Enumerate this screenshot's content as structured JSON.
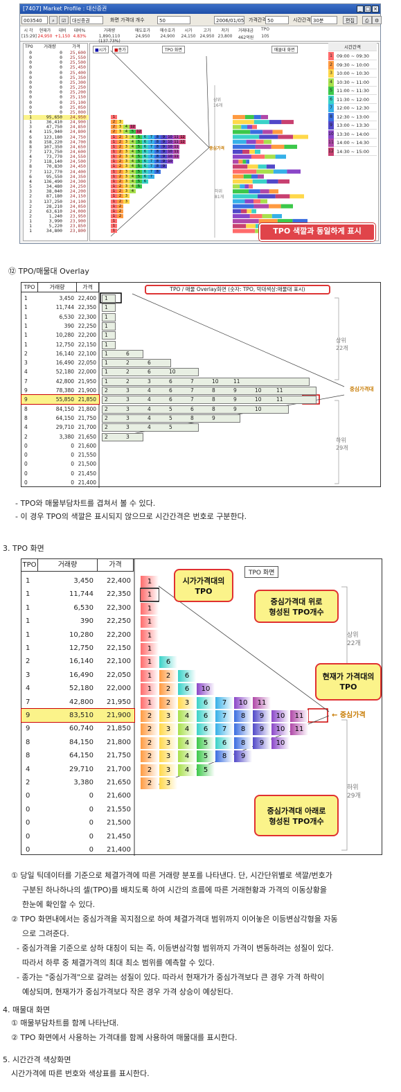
{
  "window": {
    "title": "[7407] Market Profile : 대신증권",
    "code": "003540",
    "name": "대신증권",
    "screen_count_label": "화면 가격대 개수",
    "screen_count_value": "50",
    "date": "2006/01/05",
    "price_interval_label": "가격간격",
    "price_interval_value": "50",
    "time_interval_label": "시간간격",
    "time_interval_value": "30분",
    "edit_button": "편집"
  },
  "quote": {
    "headers": [
      "시 각",
      "현재가",
      "대비",
      "대비%",
      "거래량",
      "매도호가",
      "매수호가",
      "시가",
      "고가",
      "저가",
      "거래대금",
      "TPO"
    ],
    "values": [
      "[15:29]",
      "24,950",
      "+1,150",
      "4.83%",
      "1,890,110 (137.73%)",
      "24,950",
      "24,900",
      "24,150",
      "24,950",
      "23,800",
      "462억원",
      "105"
    ]
  },
  "panel1": {
    "headers": [
      "TPO",
      "거래량",
      "가격"
    ],
    "rows": [
      [
        "0",
        "0",
        "25,600"
      ],
      [
        "0",
        "0",
        "25,550"
      ],
      [
        "0",
        "0",
        "25,500"
      ],
      [
        "0",
        "0",
        "25,450"
      ],
      [
        "0",
        "0",
        "25,400"
      ],
      [
        "0",
        "0",
        "25,350"
      ],
      [
        "0",
        "0",
        "25,300"
      ],
      [
        "0",
        "0",
        "25,250"
      ],
      [
        "0",
        "0",
        "25,200"
      ],
      [
        "0",
        "0",
        "25,150"
      ],
      [
        "0",
        "0",
        "25,100"
      ],
      [
        "0",
        "0",
        "25,050"
      ],
      [
        "0",
        "0",
        "25,000"
      ],
      [
        "1",
        "95,650",
        "24,950"
      ],
      [
        "1",
        "36,410",
        "24,900"
      ],
      [
        "3",
        "47,750",
        "24,850"
      ],
      [
        "4",
        "115,940",
        "24,800"
      ],
      [
        "6",
        "123,180",
        "24,750"
      ],
      [
        "8",
        "158,220",
        "24,700"
      ],
      [
        "8",
        "107,350",
        "24,650"
      ],
      [
        "7",
        "173,750",
        "24,600"
      ],
      [
        "4",
        "73,770",
        "24,550"
      ],
      [
        "7",
        "118,140",
        "24,500"
      ],
      [
        "8",
        "70,830",
        "24,450"
      ],
      [
        "7",
        "112,770",
        "24,400"
      ],
      [
        "6",
        "95,550",
        "24,350"
      ],
      [
        "4",
        "136,490",
        "24,300"
      ],
      [
        "5",
        "34,480",
        "24,250"
      ],
      [
        "3",
        "38,040",
        "24,200"
      ],
      [
        "2",
        "87,180",
        "24,150"
      ],
      [
        "3",
        "137,250",
        "24,100"
      ],
      [
        "2",
        "28,210",
        "24,050"
      ],
      [
        "2",
        "63,610",
        "24,000"
      ],
      [
        "2",
        "1,240",
        "23,950"
      ],
      [
        "1",
        "3,990",
        "23,900"
      ],
      [
        "1",
        "5,220",
        "23,850"
      ],
      [
        "1",
        "34,800",
        "23,800"
      ]
    ],
    "legend_price": "시가",
    "legend_close": "종가",
    "tpo_screen_button": "TPO 화면",
    "volume_screen_button": "매물대 화면",
    "upper_label": "상위\n16개",
    "lower_label": "하위\n81개",
    "center_label": "중심가격",
    "callout": "TPO 색깔과 동일하게 표시"
  },
  "time_legend": {
    "title": "시간간격",
    "items": [
      {
        "n": "1",
        "label": "09:00 ~ 09:30",
        "color": "#ff6b6b"
      },
      {
        "n": "2",
        "label": "09:30 ~ 10:00",
        "color": "#ff9a40"
      },
      {
        "n": "3",
        "label": "10:00 ~ 10:30",
        "color": "#ffd84a"
      },
      {
        "n": "4",
        "label": "10:30 ~ 11:00",
        "color": "#a8e04c"
      },
      {
        "n": "5",
        "label": "11:00 ~ 11:30",
        "color": "#3cc84a"
      },
      {
        "n": "6",
        "label": "11:30 ~ 12:00",
        "color": "#3ad2c8"
      },
      {
        "n": "7",
        "label": "12:00 ~ 12:30",
        "color": "#36b0e8"
      },
      {
        "n": "8",
        "label": "12:30 ~ 13:00",
        "color": "#3a6ee0"
      },
      {
        "n": "9",
        "label": "13:00 ~ 13:30",
        "color": "#5148c8"
      },
      {
        "n": "10",
        "label": "13:30 ~ 14:00",
        "color": "#8a46c8"
      },
      {
        "n": "11",
        "label": "14:00 ~ 14:30",
        "color": "#b048a8"
      },
      {
        "n": "12",
        "label": "14:30 ~ 15:00",
        "color": "#c84070"
      }
    ]
  },
  "section2": {
    "heading": "⑫ TPO/매물대 Overlay",
    "banner": "TPO / 매물 Overlay화면 (숫자: TPO, 막대색상:매물대 표시)",
    "headers": [
      "TPO",
      "거래량",
      "가격"
    ],
    "rows": [
      [
        "1",
        "3,450",
        "22,400"
      ],
      [
        "1",
        "11,744",
        "22,350"
      ],
      [
        "1",
        "6,530",
        "22,300"
      ],
      [
        "1",
        "390",
        "22,250"
      ],
      [
        "1",
        "10,280",
        "22,200"
      ],
      [
        "1",
        "12,750",
        "22,150"
      ],
      [
        "2",
        "16,140",
        "22,100"
      ],
      [
        "3",
        "16,490",
        "22,050"
      ],
      [
        "4",
        "52,180",
        "22,000"
      ],
      [
        "7",
        "42,800",
        "21,950"
      ],
      [
        "9",
        "78,380",
        "21,900"
      ],
      [
        "9",
        "55,850",
        "21,850"
      ],
      [
        "8",
        "84,150",
        "21,800"
      ],
      [
        "8",
        "64,150",
        "21,750"
      ],
      [
        "4",
        "29,710",
        "21,700"
      ],
      [
        "2",
        "3,380",
        "21,650"
      ],
      [
        "0",
        "0",
        "21,600"
      ],
      [
        "0",
        "0",
        "21,550"
      ],
      [
        "0",
        "0",
        "21,500"
      ],
      [
        "0",
        "0",
        "21,450"
      ],
      [
        "0",
        "0",
        "21,400"
      ]
    ],
    "tpo": [
      [
        "1"
      ],
      [
        "1"
      ],
      [
        "1"
      ],
      [
        "1"
      ],
      [
        "1"
      ],
      [
        "1"
      ],
      [
        "1",
        "6"
      ],
      [
        "1",
        "2",
        "6"
      ],
      [
        "1",
        "2",
        "6",
        "10"
      ],
      [
        "1",
        "2",
        "3",
        "6",
        "7",
        "10",
        "11"
      ],
      [
        "2",
        "3",
        "4",
        "6",
        "7",
        "8",
        "9",
        "10",
        "11"
      ],
      [
        "2",
        "3",
        "4",
        "6",
        "7",
        "8",
        "9",
        "10",
        "11"
      ],
      [
        "2",
        "3",
        "4",
        "5",
        "6",
        "8",
        "9",
        "10"
      ],
      [
        "2",
        "3",
        "4",
        "5",
        "8",
        "9"
      ],
      [
        "2",
        "3",
        "4",
        "5"
      ],
      [
        "2",
        "3"
      ]
    ],
    "upper_label": "상위\n22개",
    "lower_label": "하위\n29개",
    "center_label": "중심가격대",
    "note1": "- TPO와 매물부담차트를 겹쳐서 볼 수 있다.",
    "note2": "- 이 경우 TPO의 색깔은 표시되지 않으므로 시간간격은 번호로 구분한다."
  },
  "section3": {
    "heading": "3. TPO 화면",
    "screen_label": "TPO 화면",
    "headers": [
      "TPO",
      "거래량",
      "가격"
    ],
    "rows": [
      [
        "1",
        "3,450",
        "22,400"
      ],
      [
        "1",
        "11,744",
        "22,350"
      ],
      [
        "1",
        "6,530",
        "22,300"
      ],
      [
        "1",
        "390",
        "22,250"
      ],
      [
        "1",
        "10,280",
        "22,200"
      ],
      [
        "1",
        "12,750",
        "22,150"
      ],
      [
        "2",
        "16,140",
        "22,100"
      ],
      [
        "3",
        "16,490",
        "22,050"
      ],
      [
        "4",
        "52,180",
        "22,000"
      ],
      [
        "7",
        "42,800",
        "21,950"
      ],
      [
        "9",
        "83,510",
        "21,900"
      ],
      [
        "9",
        "60,740",
        "21,850"
      ],
      [
        "8",
        "84,150",
        "21,800"
      ],
      [
        "8",
        "64,150",
        "21,750"
      ],
      [
        "4",
        "29,710",
        "21,700"
      ],
      [
        "2",
        "3,380",
        "21,650"
      ],
      [
        "0",
        "0",
        "21,600"
      ],
      [
        "0",
        "0",
        "21,550"
      ],
      [
        "0",
        "0",
        "21,500"
      ],
      [
        "0",
        "0",
        "21,450"
      ],
      [
        "0",
        "0",
        "21,400"
      ]
    ],
    "tpo": [
      [
        "1"
      ],
      [
        "1"
      ],
      [
        "1"
      ],
      [
        "1"
      ],
      [
        "1"
      ],
      [
        "1"
      ],
      [
        "1",
        "6"
      ],
      [
        "1",
        "2",
        "6"
      ],
      [
        "1",
        "2",
        "6",
        "10"
      ],
      [
        "1",
        "2",
        "3",
        "6",
        "7",
        "10",
        "11"
      ],
      [
        "2",
        "3",
        "4",
        "6",
        "7",
        "8",
        "9",
        "10",
        "11"
      ],
      [
        "2",
        "3",
        "4",
        "6",
        "7",
        "8",
        "9",
        "10",
        "11"
      ],
      [
        "2",
        "3",
        "4",
        "5",
        "6",
        "8",
        "9",
        "10"
      ],
      [
        "2",
        "3",
        "4",
        "5",
        "8",
        "9"
      ],
      [
        "2",
        "3",
        "4",
        "5"
      ],
      [
        "2",
        "3"
      ]
    ],
    "callout_open": "시가가격대의\nTPO",
    "callout_upper": "중심가격대 위로\n형성된 TPO개수",
    "callout_current": "현재가 가격대의\nTPO",
    "callout_lower": "중심가격대 아래로\n형성된 TPO개수",
    "upper_label": "상위\n22개",
    "lower_label": "하위\n29개",
    "center_label": "← 중심가격"
  },
  "text": {
    "p1a": "① 당일 틱데이터를 기준으로 체결가격에 따른 거래량 분포를 나타낸다. 단, 시간단위별로 색깔/번호가",
    "p1b": "구분된 하나하나의 셀(TPO)를 배치도록 하여 시간의 흐름에 따른 거래현황과 가격의 이동상황을",
    "p1c": "한눈에 확인할 수 있다.",
    "p2a": "② TPO 화면내에서는 중심가격을 꼭지점으로 하여 체결가격대 범위까지 이어놓은 이등변삼각형을 자동",
    "p2b": "으로 그려준다.",
    "p3a": "- 중심가격을 기준으로 상하 대칭이 되는 즉, 이등변삼각형 범위까지 가격이 변동하려는 성질이 있다.",
    "p3b": "따라서 하루 중 체결가격의 최대 최소 범위를 예측할 수 있다.",
    "p4a": "- 종가는 \"중심가격\"으로 갈려는 성질이 있다. 따라서 현재가가 중심가격보다 큰 경우 가격 하락이",
    "p4b": "예상되며, 현재가가 중심가격보다 작은 경우 가격 상승이 예상된다.",
    "h4": "4. 매물대 화면",
    "p5": "① 매물부담차트를 함께 나타난대.",
    "p6": "② TPO 화면에서 사용하는 가격대를 함께 사용하여 매물대를 표시한다.",
    "h5": "5. 시간간격 색상화면",
    "p7": "시간가격에 따른 번호와 색상표를 표시한다."
  }
}
